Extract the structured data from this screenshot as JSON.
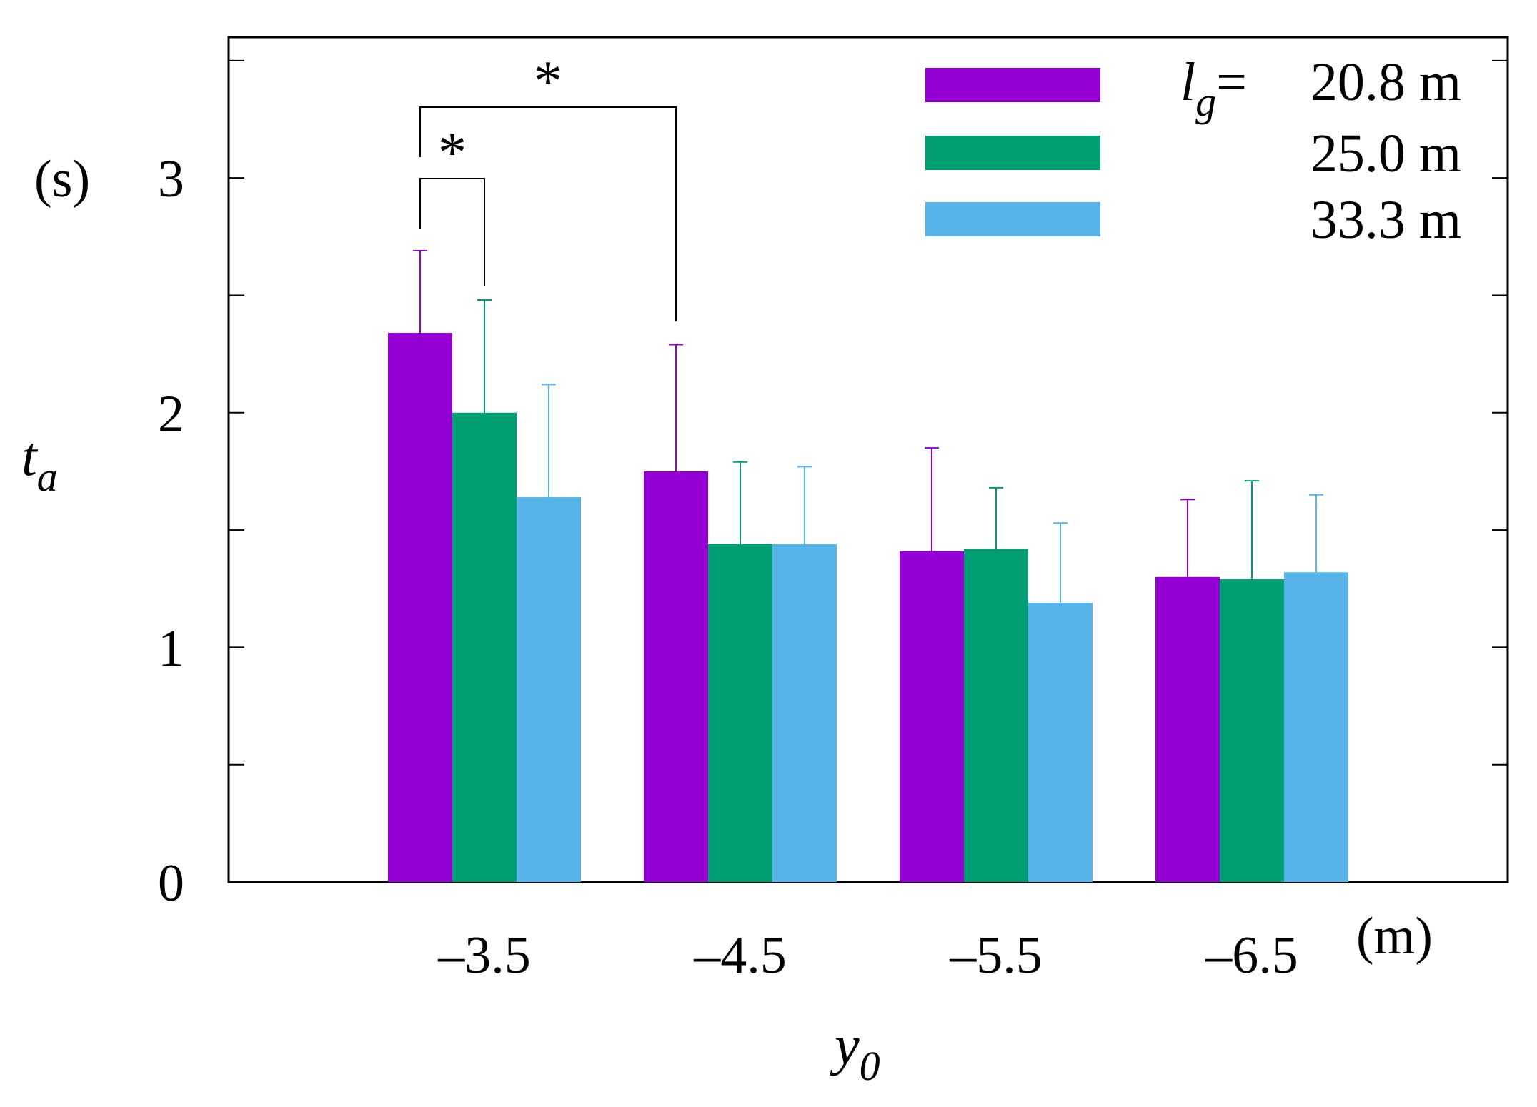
{
  "chart_data": {
    "type": "bar",
    "title": "",
    "xlabel": "y",
    "xlabel_subscript": "0",
    "xunit": "(m)",
    "ylabel": "t",
    "ylabel_subscript": "a",
    "yunit": "(s)",
    "ylim": [
      0,
      3.6
    ],
    "yticks": [
      0,
      1,
      2,
      3
    ],
    "yticks_minor": [
      0.5,
      1.5,
      2.5,
      3.5
    ],
    "categories": [
      "–3.5",
      "–4.5",
      "–5.5",
      "–6.5"
    ],
    "legend_position": "top-right",
    "legend_prefix": "l",
    "legend_prefix_subscript": "g",
    "legend_prefix_eq": "=",
    "series": [
      {
        "name": "20.8 m",
        "color": "#9400d3",
        "values": [
          2.34,
          1.75,
          1.41,
          1.3
        ],
        "errors": [
          0.35,
          0.54,
          0.44,
          0.33
        ]
      },
      {
        "name": "25.0 m",
        "color": "#009e73",
        "values": [
          2.0,
          1.44,
          1.42,
          1.29
        ],
        "errors": [
          0.48,
          0.35,
          0.26,
          0.42
        ]
      },
      {
        "name": "33.3 m",
        "color": "#56b4e9",
        "values": [
          1.64,
          1.44,
          1.19,
          1.32
        ],
        "errors": [
          0.48,
          0.33,
          0.34,
          0.33
        ]
      }
    ],
    "significance": [
      {
        "label": "*",
        "from": {
          "category": 0,
          "series": 0
        },
        "to": {
          "category": 0,
          "series": 1
        }
      },
      {
        "label": "*",
        "from": {
          "category": 0,
          "series": 0
        },
        "to": {
          "category": 1,
          "series": 0
        }
      }
    ]
  }
}
